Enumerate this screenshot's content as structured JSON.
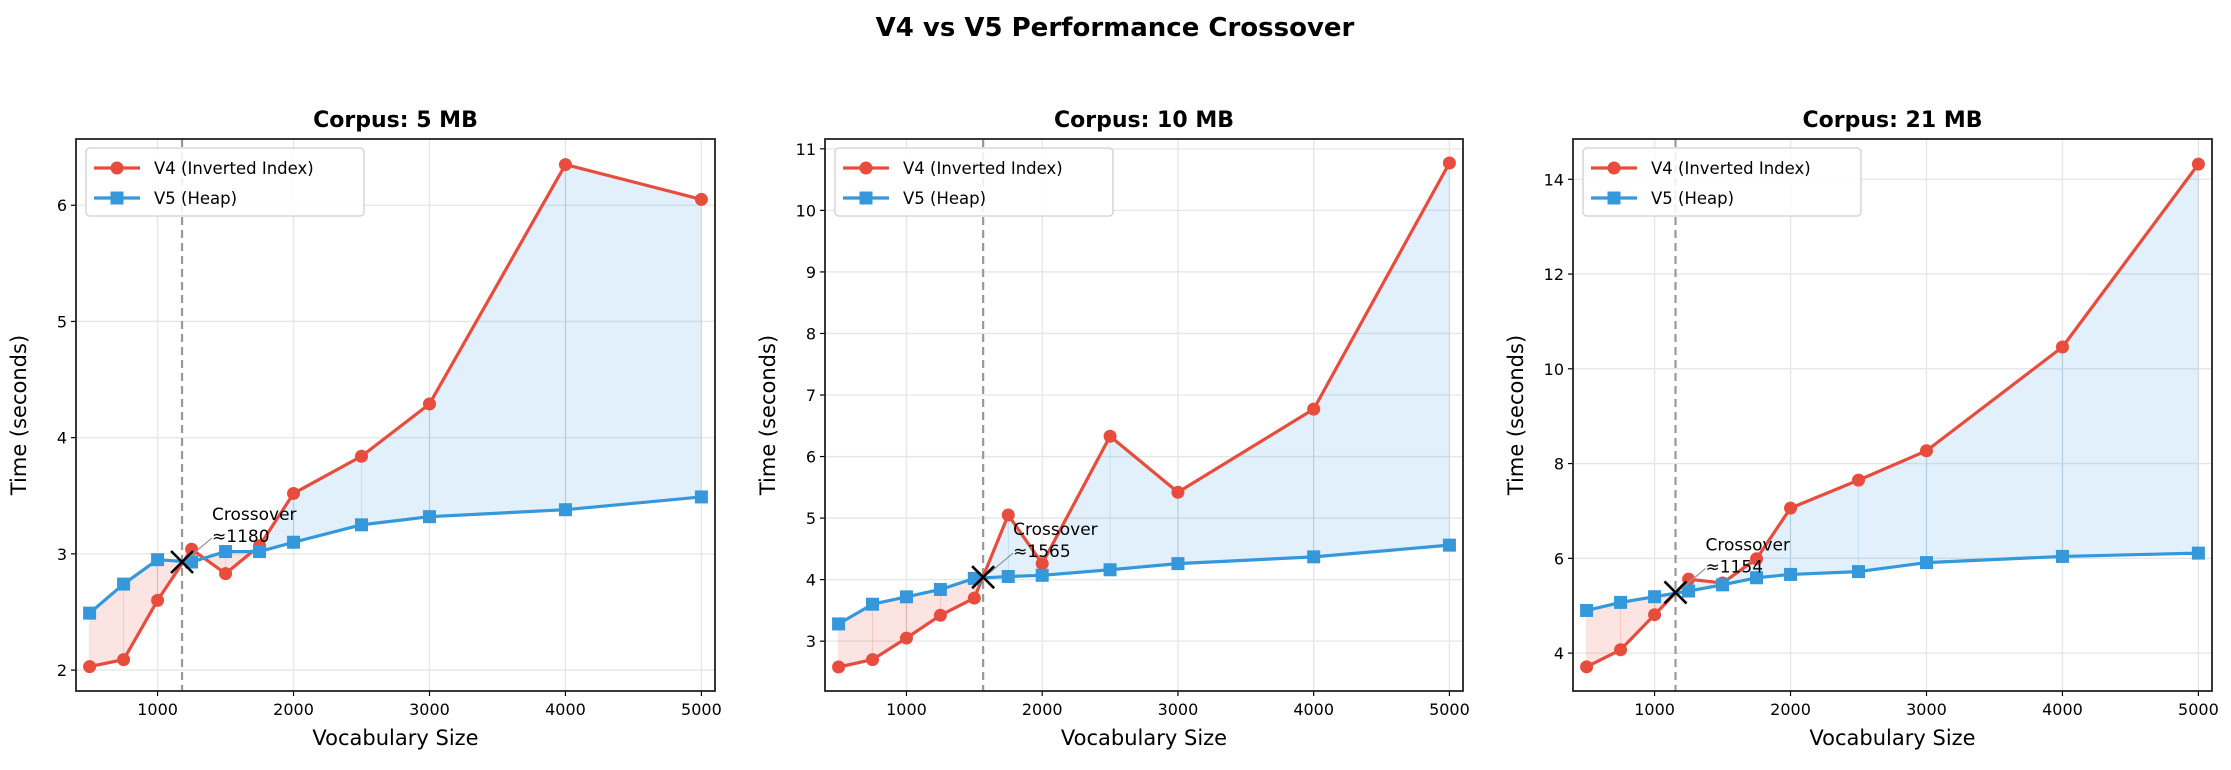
{
  "title": "V4 vs V5 Performance Crossover",
  "colors": {
    "v4": "#e74c3c",
    "v5": "#3498db",
    "grid": "#e6e6e6",
    "crossover_line": "#999999"
  },
  "chart_data": [
    {
      "type": "line",
      "title": "Corpus: 5 MB",
      "xlabel": "Vocabulary Size",
      "ylabel": "Time (seconds)",
      "x": [
        500,
        750,
        1000,
        1250,
        1500,
        1750,
        2000,
        2500,
        3000,
        4000,
        5000
      ],
      "xlim": [
        400,
        5100
      ],
      "ylim": [
        1.82,
        6.57
      ],
      "xticks": [
        1000,
        2000,
        3000,
        4000,
        5000
      ],
      "yticks": [
        2,
        3,
        4,
        5,
        6
      ],
      "grid": true,
      "legend": "top-left",
      "series": [
        {
          "name": "V4 (Inverted Index)",
          "marker": "circle",
          "values": [
            2.03,
            2.09,
            2.6,
            3.04,
            2.83,
            3.07,
            3.52,
            3.84,
            4.29,
            6.35,
            6.05
          ]
        },
        {
          "name": "V5 (Heap)",
          "marker": "square",
          "values": [
            2.49,
            2.74,
            2.95,
            2.93,
            3.02,
            3.02,
            3.1,
            3.25,
            3.32,
            3.38,
            3.49
          ]
        }
      ],
      "crossover": {
        "x": 1180,
        "y": 2.93,
        "label": "Crossover",
        "value_label": "≈1180"
      }
    },
    {
      "type": "line",
      "title": "Corpus: 10 MB",
      "xlabel": "Vocabulary Size",
      "ylabel": "Time (seconds)",
      "x": [
        500,
        750,
        1000,
        1250,
        1500,
        1750,
        2000,
        2500,
        3000,
        4000,
        5000
      ],
      "xlim": [
        400,
        5100
      ],
      "ylim": [
        2.19,
        11.16
      ],
      "xticks": [
        1000,
        2000,
        3000,
        4000,
        5000
      ],
      "yticks": [
        3,
        4,
        5,
        6,
        7,
        8,
        9,
        10,
        11
      ],
      "grid": true,
      "legend": "top-left",
      "series": [
        {
          "name": "V4 (Inverted Index)",
          "marker": "circle",
          "values": [
            2.58,
            2.7,
            3.05,
            3.42,
            3.7,
            5.05,
            4.26,
            6.33,
            5.42,
            6.77,
            10.77
          ]
        },
        {
          "name": "V5 (Heap)",
          "marker": "square",
          "values": [
            3.28,
            3.6,
            3.72,
            3.84,
            4.02,
            4.05,
            4.07,
            4.16,
            4.26,
            4.37,
            4.56
          ]
        }
      ],
      "crossover": {
        "x": 1565,
        "y": 4.04,
        "label": "Crossover",
        "value_label": "≈1565"
      }
    },
    {
      "type": "line",
      "title": "Corpus: 21 MB",
      "xlabel": "Vocabulary Size",
      "ylabel": "Time (seconds)",
      "x": [
        500,
        750,
        1000,
        1250,
        1500,
        1750,
        2000,
        2500,
        3000,
        4000,
        5000
      ],
      "xlim": [
        400,
        5100
      ],
      "ylim": [
        3.2,
        14.85
      ],
      "xticks": [
        1000,
        2000,
        3000,
        4000,
        5000
      ],
      "yticks": [
        4,
        6,
        8,
        10,
        12,
        14
      ],
      "grid": true,
      "legend": "top-left",
      "series": [
        {
          "name": "V4 (Inverted Index)",
          "marker": "circle",
          "values": [
            3.71,
            4.07,
            4.81,
            5.56,
            5.48,
            5.99,
            7.06,
            7.65,
            8.27,
            10.46,
            14.32
          ]
        },
        {
          "name": "V5 (Heap)",
          "marker": "square",
          "values": [
            4.9,
            5.07,
            5.19,
            5.31,
            5.44,
            5.59,
            5.66,
            5.72,
            5.91,
            6.04,
            6.11
          ]
        }
      ],
      "crossover": {
        "x": 1154,
        "y": 5.28,
        "label": "Crossover",
        "value_label": "≈1154"
      }
    }
  ]
}
